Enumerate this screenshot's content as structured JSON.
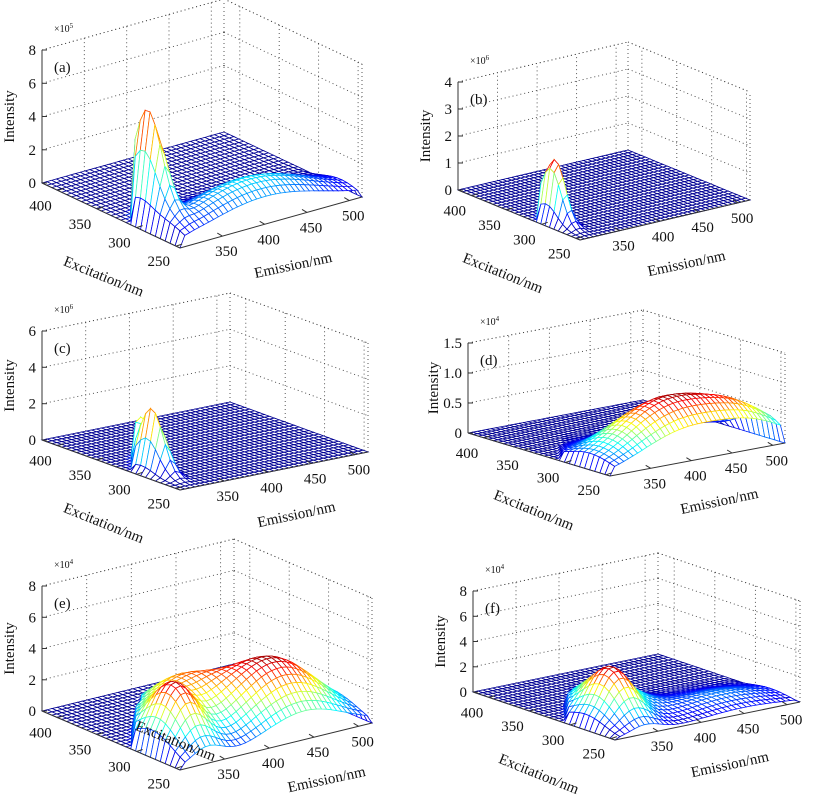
{
  "chart_data": [
    {
      "type": "surface",
      "panel_label": "(a)",
      "xlabel": "Emission/nm",
      "ylabel": "Excitation/nm",
      "zlabel": "Intensity",
      "z_multiplier_base": "×10",
      "z_multiplier_exp": "5",
      "x_ticks": [
        350,
        400,
        450,
        500
      ],
      "y_ticks": [
        250,
        300,
        350,
        400
      ],
      "z_ticks": [
        "0",
        "2",
        "4",
        "6",
        "8"
      ],
      "xlim": [
        300,
        515
      ],
      "ylim": [
        245,
        420
      ],
      "zlim": [
        0,
        800000
      ],
      "colormap": "jet",
      "grid": true,
      "peaks": [
        {
          "excitation": 305,
          "emission": 318,
          "width_ex": 18,
          "width_em": 7,
          "intensity": 650000
        },
        {
          "excitation": 265,
          "emission": 400,
          "width_ex": 25,
          "width_em": 70,
          "intensity": 230000
        }
      ]
    },
    {
      "type": "surface",
      "panel_label": "(b)",
      "xlabel": "Emission/nm",
      "ylabel": "Excitation/nm",
      "zlabel": "Intensity",
      "z_multiplier_base": "×10",
      "z_multiplier_exp": "6",
      "x_ticks": [
        350,
        400,
        450,
        500
      ],
      "y_ticks": [
        250,
        300,
        350,
        400
      ],
      "z_ticks": [
        "0",
        "1",
        "2",
        "3",
        "4"
      ],
      "xlim": [
        300,
        515
      ],
      "ylim": [
        245,
        420
      ],
      "zlim": [
        0,
        4000000
      ],
      "colormap": "jet",
      "grid": true,
      "peaks": [
        {
          "excitation": 300,
          "emission": 315,
          "width_ex": 15,
          "width_em": 6,
          "intensity": 2400000
        }
      ]
    },
    {
      "type": "surface",
      "panel_label": "(c)",
      "xlabel": "Emission/nm",
      "ylabel": "Excitation/nm",
      "zlabel": "Intensity",
      "z_multiplier_base": "×10",
      "z_multiplier_exp": "6",
      "x_ticks": [
        350,
        400,
        450,
        500
      ],
      "y_ticks": [
        250,
        300,
        350,
        400
      ],
      "z_ticks": [
        "0",
        "2",
        "4",
        "6"
      ],
      "xlim": [
        300,
        515
      ],
      "ylim": [
        245,
        420
      ],
      "zlim": [
        0,
        6000000
      ],
      "colormap": "jet",
      "grid": true,
      "peaks": [
        {
          "excitation": 300,
          "emission": 318,
          "width_ex": 15,
          "width_em": 6,
          "intensity": 3500000
        },
        {
          "excitation": 330,
          "emission": 332,
          "width_ex": 10,
          "width_em": 6,
          "intensity": 2500000
        }
      ]
    },
    {
      "type": "surface",
      "panel_label": "(d)",
      "xlabel": "Emission/nm",
      "ylabel": "Excitation/nm",
      "zlabel": "Intensity",
      "z_multiplier_base": "×10",
      "z_multiplier_exp": "4",
      "x_ticks": [
        350,
        400,
        450,
        500
      ],
      "y_ticks": [
        250,
        300,
        350,
        400
      ],
      "z_ticks": [
        "0",
        "0.5",
        "1.0",
        "1.5"
      ],
      "xlim": [
        300,
        515
      ],
      "ylim": [
        245,
        420
      ],
      "zlim": [
        0,
        15000
      ],
      "colormap": "jet",
      "grid": true,
      "peaks": [
        {
          "excitation": 275,
          "emission": 395,
          "width_ex": 30,
          "width_em": 55,
          "intensity": 9000
        },
        {
          "excitation": 265,
          "emission": 480,
          "width_ex": 25,
          "width_em": 40,
          "intensity": 4500
        }
      ]
    },
    {
      "type": "surface",
      "panel_label": "(e)",
      "xlabel": "Emission/nm",
      "ylabel": "Excitation/nm",
      "zlabel": "Intensity",
      "z_multiplier_base": "×10",
      "z_multiplier_exp": "4",
      "x_ticks": [
        350,
        400,
        450,
        500
      ],
      "y_ticks": [
        250,
        300,
        350,
        400
      ],
      "z_ticks": [
        "0",
        "2",
        "4",
        "6",
        "8"
      ],
      "xlim": [
        300,
        515
      ],
      "ylim": [
        245,
        420
      ],
      "zlim": [
        0,
        80000
      ],
      "colormap": "jet",
      "grid": true,
      "peaks": [
        {
          "excitation": 285,
          "emission": 330,
          "width_ex": 25,
          "width_em": 18,
          "intensity": 36000
        },
        {
          "excitation": 290,
          "emission": 440,
          "width_ex": 35,
          "width_em": 45,
          "intensity": 42000
        },
        {
          "excitation": 330,
          "emission": 370,
          "width_ex": 30,
          "width_em": 30,
          "intensity": 25000
        }
      ]
    },
    {
      "type": "surface",
      "panel_label": "(f)",
      "xlabel": "Emission/nm",
      "ylabel": "Excitation/nm",
      "zlabel": "Intensity",
      "z_multiplier_base": "×10",
      "z_multiplier_exp": "4",
      "x_ticks": [
        350,
        400,
        450,
        500
      ],
      "y_ticks": [
        250,
        300,
        350,
        400
      ],
      "z_ticks": [
        "0",
        "2",
        "4",
        "6",
        "8"
      ],
      "xlim": [
        300,
        515
      ],
      "ylim": [
        245,
        420
      ],
      "zlim": [
        0,
        80000
      ],
      "colormap": "jet",
      "grid": true,
      "peaks": [
        {
          "excitation": 285,
          "emission": 335,
          "width_ex": 22,
          "width_em": 18,
          "intensity": 36000
        },
        {
          "excitation": 320,
          "emission": 360,
          "width_ex": 25,
          "width_em": 25,
          "intensity": 23000
        },
        {
          "excitation": 275,
          "emission": 450,
          "width_ex": 25,
          "width_em": 50,
          "intensity": 10000
        }
      ]
    }
  ]
}
